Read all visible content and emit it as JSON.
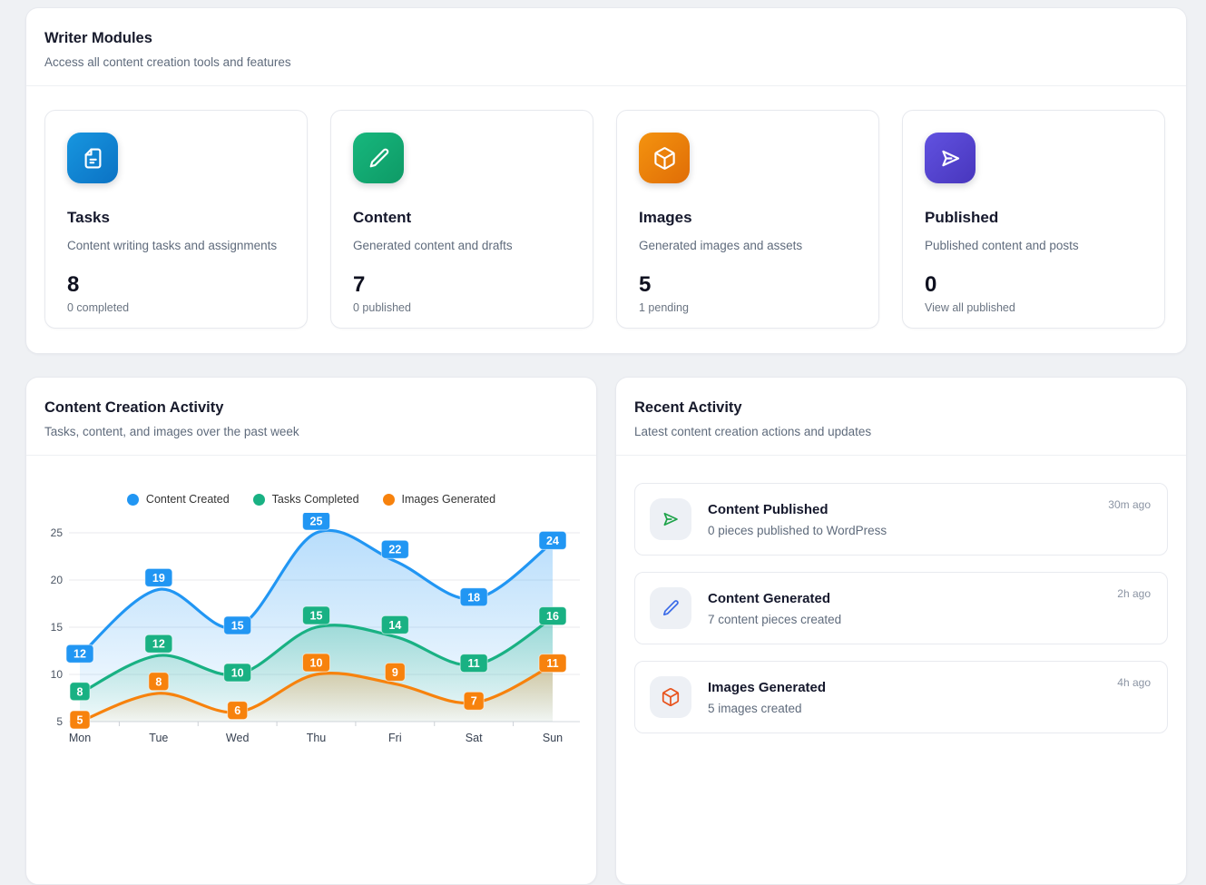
{
  "writer_modules": {
    "title": "Writer Modules",
    "subtitle": "Access all content creation tools and features",
    "cards": [
      {
        "title": "Tasks",
        "description": "Content writing tasks and assignments",
        "count": "8",
        "stat": "0 completed",
        "icon": "file-icon",
        "color_from": "#1796df",
        "color_to": "#0b72c4"
      },
      {
        "title": "Content",
        "description": "Generated content and drafts",
        "count": "7",
        "stat": "0 published",
        "icon": "pencil-icon",
        "color_from": "#17b77d",
        "color_to": "#0e9a66"
      },
      {
        "title": "Images",
        "description": "Generated images and assets",
        "count": "5",
        "stat": "1 pending",
        "icon": "cube-icon",
        "color_from": "#f4930f",
        "color_to": "#e06d06"
      },
      {
        "title": "Published",
        "description": "Published content and posts",
        "count": "0",
        "stat": "View all published",
        "icon": "send-icon",
        "color_from": "#6152e0",
        "color_to": "#4836bd"
      }
    ]
  },
  "activity_chart": {
    "title": "Content Creation Activity",
    "subtitle": "Tasks, content, and images over the past week"
  },
  "chart_data": {
    "type": "line",
    "title": "Content Creation Activity",
    "x": [
      "Mon",
      "Tue",
      "Wed",
      "Thu",
      "Fri",
      "Sat",
      "Sun"
    ],
    "series": [
      {
        "name": "Content Created",
        "color": "#2196f3",
        "values": [
          12,
          19,
          15,
          25,
          22,
          18,
          24
        ]
      },
      {
        "name": "Tasks Completed",
        "color": "#19b183",
        "values": [
          8,
          12,
          10,
          15,
          14,
          11,
          16
        ]
      },
      {
        "name": "Images Generated",
        "color": "#f7820d",
        "values": [
          5,
          8,
          6,
          10,
          9,
          7,
          11
        ]
      }
    ],
    "ylim": [
      5,
      25
    ],
    "yticks": [
      5,
      10,
      15,
      20,
      25
    ],
    "smooth": true,
    "area": true,
    "data_labels": true,
    "legend_position": "top",
    "grid": "horizontal"
  },
  "recent_activity": {
    "title": "Recent Activity",
    "subtitle": "Latest content creation actions and updates",
    "items": [
      {
        "title": "Content Published",
        "description": "0 pieces published to WordPress",
        "time": "30m ago",
        "icon": "send-icon",
        "icon_color": "#1fa34a"
      },
      {
        "title": "Content Generated",
        "description": "7 content pieces created",
        "time": "2h ago",
        "icon": "pencil-icon",
        "icon_color": "#3b6be8"
      },
      {
        "title": "Images Generated",
        "description": "5 images created",
        "time": "4h ago",
        "icon": "cube-icon",
        "icon_color": "#e8531d"
      }
    ]
  }
}
